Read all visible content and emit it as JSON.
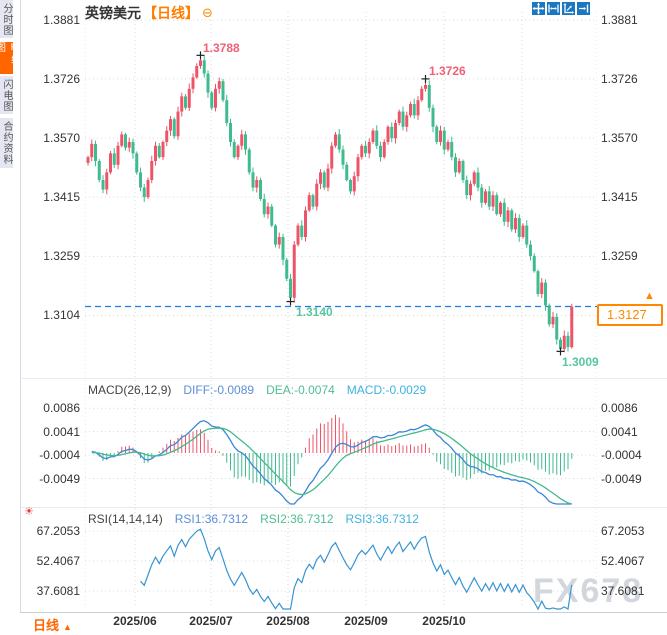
{
  "sidebar": {
    "items": [
      {
        "label": "分时图",
        "active": false
      },
      {
        "label": "K线图",
        "active": true
      },
      {
        "label": "闪电图",
        "active": false
      },
      {
        "label": "合约资料",
        "active": false
      }
    ]
  },
  "header": {
    "title": "英镑美元",
    "period_tag": "【日线】",
    "title_icon": "⊖"
  },
  "toolbar": {
    "icons": [
      "pan",
      "zoom-horizontal",
      "axis-scale",
      "step-forward"
    ]
  },
  "bottom_bar": {
    "period_label": "日线",
    "period_arrow": "▲"
  },
  "watermark": "FX678",
  "icons": {
    "indicator_sun": "☀"
  },
  "colors": {
    "up": "#ee5468",
    "down": "#3fbb8e",
    "grid": "#d7d9de",
    "dashed_line": "#1d7fd8",
    "accent_orange": "#ff8800",
    "ann_high": "#f25f75",
    "ann_low": "#57c6a1",
    "diff_line": "#3a87d8",
    "dea_line": "#44b98d",
    "rsi_line": "#3894d2",
    "cross": "#222222"
  },
  "chart_data": {
    "type": "candlestick",
    "title": "英镑美元【日线】",
    "price_ticks": [
      "1.3881",
      "1.3726",
      "1.3570",
      "1.3415",
      "1.3259",
      "1.3104"
    ],
    "x_labels": [
      "2025/06",
      "2025/07",
      "2025/08",
      "2025/09",
      "2025/10"
    ],
    "current_price": "1.3127",
    "current_price_num": 1.3127,
    "annotations": [
      {
        "text": "1.3788",
        "type": "high"
      },
      {
        "text": "1.3726",
        "type": "high"
      },
      {
        "text": "1.3140",
        "type": "low"
      },
      {
        "text": "1.3009",
        "type": "low"
      }
    ],
    "key_points": [
      {
        "index": 30,
        "type": "high",
        "price": 1.3788
      },
      {
        "index": 90,
        "type": "high",
        "price": 1.3726
      },
      {
        "index": 54,
        "type": "low",
        "price": 1.314
      },
      {
        "index": 126,
        "type": "low",
        "price": 1.3009
      }
    ],
    "first_open": 1.3505,
    "closes": [
      1.352,
      1.3555,
      1.351,
      1.346,
      1.3435,
      1.348,
      1.353,
      1.35,
      1.355,
      1.358,
      1.3545,
      1.356,
      1.353,
      1.348,
      1.344,
      1.3415,
      1.346,
      1.351,
      1.355,
      1.352,
      1.356,
      1.359,
      1.362,
      1.3575,
      1.364,
      1.368,
      1.365,
      1.37,
      1.373,
      1.376,
      1.3775,
      1.374,
      1.369,
      1.365,
      1.37,
      1.372,
      1.367,
      1.361,
      1.356,
      1.352,
      1.355,
      1.358,
      1.354,
      1.348,
      1.344,
      1.346,
      1.341,
      1.337,
      1.339,
      1.334,
      1.329,
      1.331,
      1.325,
      1.32,
      1.315,
      1.329,
      1.334,
      1.331,
      1.338,
      1.342,
      1.339,
      1.345,
      1.348,
      1.344,
      1.349,
      1.355,
      1.358,
      1.354,
      1.35,
      1.346,
      1.343,
      1.347,
      1.352,
      1.355,
      1.353,
      1.356,
      1.359,
      1.355,
      1.352,
      1.356,
      1.36,
      1.357,
      1.361,
      1.364,
      1.36,
      1.363,
      1.366,
      1.363,
      1.367,
      1.37,
      1.371,
      1.365,
      1.36,
      1.356,
      1.359,
      1.354,
      1.356,
      1.352,
      1.348,
      1.351,
      1.346,
      1.342,
      1.345,
      1.348,
      1.344,
      1.34,
      1.343,
      1.339,
      1.342,
      1.337,
      1.34,
      1.335,
      1.338,
      1.333,
      1.336,
      1.331,
      1.334,
      1.329,
      1.326,
      1.322,
      1.316,
      1.319,
      1.313,
      1.308,
      1.31,
      1.304,
      1.3015,
      1.305,
      1.302,
      1.3127
    ],
    "macd": {
      "title": "MACD(26,12,9)",
      "diff_label": "DIFF:-0.0089",
      "dea_label": "DEA:-0.0074",
      "macd_label": "MACD:-0.0029",
      "axis_ticks": [
        "0.0086",
        "0.0041",
        "-0.0004",
        "-0.0049"
      ]
    },
    "rsi": {
      "title": "RSI(14,14,14)",
      "rsi1_label": "RSI1:36.7312",
      "rsi2_label": "RSI2:36.7312",
      "rsi3_label": "RSI3:36.7312",
      "axis_ticks": [
        "67.2053",
        "52.4067",
        "37.6081"
      ]
    }
  }
}
